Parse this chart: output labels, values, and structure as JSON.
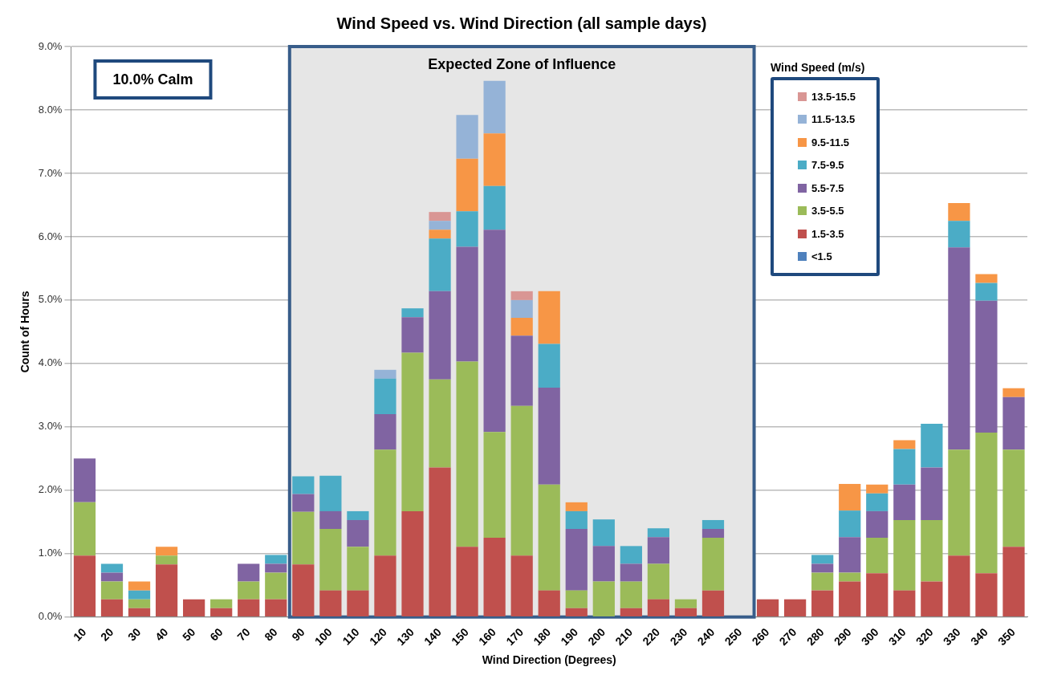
{
  "chart_data": {
    "type": "bar",
    "title": "Wind Speed vs. Wind Direction (all sample days)",
    "xlabel": "Wind Direction (Degrees)",
    "ylabel": "Count of Hours",
    "legend_title": "Wind Speed (m/s)",
    "categories": [
      "10",
      "20",
      "30",
      "40",
      "50",
      "60",
      "70",
      "80",
      "90",
      "100",
      "110",
      "120",
      "130",
      "140",
      "150",
      "160",
      "170",
      "180",
      "190",
      "200",
      "210",
      "220",
      "230",
      "240",
      "250",
      "260",
      "270",
      "280",
      "290",
      "300",
      "310",
      "320",
      "330",
      "340",
      "350"
    ],
    "stacked": true,
    "grid": "y",
    "legend": "top right",
    "ylim": [
      0,
      9
    ],
    "yticks": [
      {
        "value": 0,
        "label": "0.0%"
      },
      {
        "value": 1,
        "label": "1.0%"
      },
      {
        "value": 2,
        "label": "2.0%"
      },
      {
        "value": 3,
        "label": "3.0%"
      },
      {
        "value": 4,
        "label": "4.0%"
      },
      {
        "value": 5,
        "label": "5.0%"
      },
      {
        "value": 6,
        "label": "6.0%"
      },
      {
        "value": 7,
        "label": "7.0%"
      },
      {
        "value": 8,
        "label": "8.0%"
      },
      {
        "value": 9,
        "label": "9.0%"
      }
    ],
    "series": [
      {
        "name": "<1.5",
        "color": "#4f81bd",
        "values": [
          0,
          0,
          0,
          0,
          0,
          0,
          0,
          0,
          0,
          0,
          0,
          0,
          0,
          0,
          0,
          0,
          0,
          0,
          0,
          0,
          0,
          0,
          0,
          0,
          0,
          0,
          0,
          0,
          0,
          0,
          0,
          0,
          0,
          0,
          0
        ]
      },
      {
        "name": "1.5-3.5",
        "color": "#c0504d",
        "values": [
          0.97,
          0.28,
          0.14,
          0.83,
          0.28,
          0.14,
          0.28,
          0.28,
          0.83,
          0.42,
          0.42,
          0.97,
          1.67,
          2.36,
          1.11,
          1.25,
          0.97,
          0.42,
          0.14,
          0,
          0.14,
          0.28,
          0.14,
          0.42,
          0,
          0.28,
          0.28,
          0.42,
          0.56,
          0.69,
          0.42,
          0.56,
          0.97,
          0.69,
          1.11
        ]
      },
      {
        "name": "3.5-5.5",
        "color": "#9bbb59",
        "values": [
          0.84,
          0.28,
          0.14,
          0.14,
          0,
          0.14,
          0.28,
          0.42,
          0.83,
          0.97,
          0.69,
          1.67,
          2.5,
          1.39,
          2.92,
          1.67,
          2.36,
          1.67,
          0.28,
          0.56,
          0.42,
          0.56,
          0.14,
          0.83,
          0,
          0,
          0,
          0.28,
          0.14,
          0.56,
          1.11,
          0.97,
          1.67,
          2.22,
          1.53
        ]
      },
      {
        "name": "5.5-7.5",
        "color": "#8064a2",
        "values": [
          0.69,
          0.14,
          0,
          0,
          0,
          0,
          0.28,
          0.14,
          0.28,
          0.28,
          0.42,
          0.56,
          0.56,
          1.39,
          1.81,
          3.19,
          1.11,
          1.53,
          0.97,
          0.56,
          0.28,
          0.42,
          0,
          0.14,
          0,
          0,
          0,
          0.14,
          0.56,
          0.42,
          0.56,
          0.83,
          3.19,
          2.08,
          0.83
        ]
      },
      {
        "name": "7.5-9.5",
        "color": "#4bacc6",
        "values": [
          0,
          0.14,
          0.14,
          0,
          0,
          0,
          0,
          0.14,
          0.28,
          0.56,
          0.14,
          0.56,
          0.14,
          0.83,
          0.56,
          0.69,
          0,
          0.69,
          0.28,
          0.42,
          0.28,
          0.14,
          0,
          0.14,
          0,
          0,
          0,
          0.14,
          0.42,
          0.28,
          0.56,
          0.69,
          0.42,
          0.28,
          0
        ]
      },
      {
        "name": "9.5-11.5",
        "color": "#f79646",
        "values": [
          0,
          0,
          0.14,
          0.14,
          0,
          0,
          0,
          0,
          0,
          0,
          0,
          0,
          0,
          0.14,
          0.83,
          0.83,
          0.28,
          0.83,
          0.14,
          0,
          0,
          0,
          0,
          0,
          0,
          0,
          0,
          0,
          0.42,
          0.14,
          0.14,
          0,
          0.28,
          0.14,
          0.14
        ]
      },
      {
        "name": "11.5-13.5",
        "color": "#95b3d7",
        "values": [
          0,
          0,
          0,
          0,
          0,
          0,
          0,
          0,
          0,
          0,
          0,
          0.14,
          0,
          0.14,
          0.69,
          0.83,
          0.28,
          0,
          0,
          0,
          0,
          0,
          0,
          0,
          0,
          0,
          0,
          0,
          0,
          0,
          0,
          0,
          0,
          0,
          0
        ]
      },
      {
        "name": "13.5-15.5",
        "color": "#d99694",
        "values": [
          0,
          0,
          0,
          0,
          0,
          0,
          0,
          0,
          0,
          0,
          0,
          0,
          0,
          0.14,
          0,
          0,
          0.14,
          0,
          0,
          0,
          0,
          0,
          0,
          0,
          0,
          0,
          0,
          0,
          0,
          0,
          0,
          0,
          0,
          0,
          0
        ]
      }
    ],
    "bands": [
      {
        "axis": "x",
        "from": "90",
        "to": "250",
        "label": "Expected Zone of Influence",
        "color": "#e6e6e6"
      }
    ],
    "annotations": [
      "10.0% Calm"
    ]
  }
}
